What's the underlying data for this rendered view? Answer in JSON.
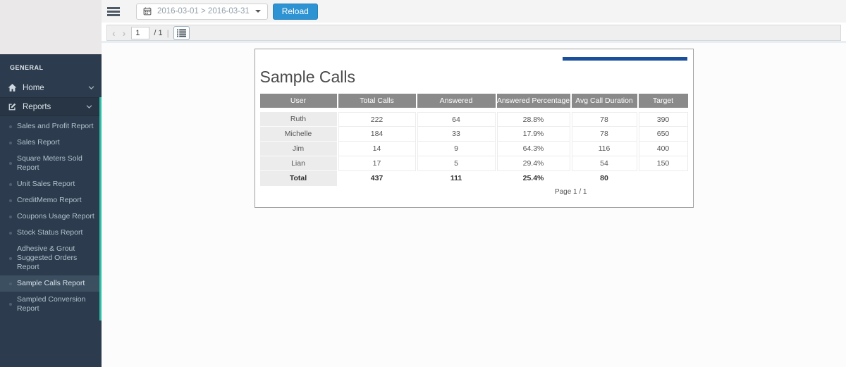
{
  "sidebar": {
    "section_label": "GENERAL",
    "home_label": "Home",
    "reports_label": "Reports",
    "report_links": [
      "Sales and Profit Report",
      "Sales Report",
      "Square Meters Sold Report",
      "Unit Sales Report",
      "CreditMemo Report",
      "Coupons Usage Report",
      "Stock Status Report",
      "Adhesive & Grout Suggested Orders Report",
      "Sample Calls Report",
      "Sampled Conversion Report"
    ],
    "active_report": "Sample Calls Report",
    "accent_color": "#2dbda5"
  },
  "topbar": {
    "date_range": "2016-03-01 > 2016-03-31",
    "reload_label": "Reload",
    "reload_color": "#2e93d2"
  },
  "pager": {
    "page_value": "1",
    "total_label": "/ 1",
    "divider": "|"
  },
  "report": {
    "title": "Sample Calls",
    "accent_bar_color": "#1a4f9c",
    "page_label": "Page 1 / 1",
    "table": {
      "columns": [
        "User",
        "Total Calls",
        "Answered",
        "Answered Percentage",
        "Avg Call Duration",
        "Target"
      ],
      "rows": [
        [
          "Ruth",
          "222",
          "64",
          "28.8%",
          "78",
          "390"
        ],
        [
          "Michelle",
          "184",
          "33",
          "17.9%",
          "78",
          "650"
        ],
        [
          "Jim",
          "14",
          "9",
          "64.3%",
          "116",
          "400"
        ],
        [
          "Lian",
          "17",
          "5",
          "29.4%",
          "54",
          "150"
        ]
      ],
      "total_row": [
        "Total",
        "437",
        "111",
        "25.4%",
        "80",
        ""
      ]
    }
  }
}
